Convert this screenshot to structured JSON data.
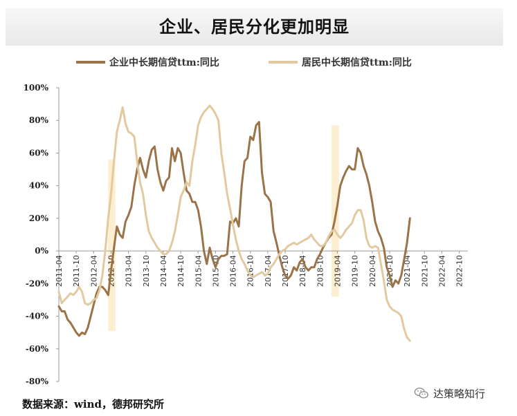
{
  "chart_data": {
    "type": "line",
    "title": "企业、居民分化更加明显",
    "source": "数据来源：wind，德邦研究所",
    "watermark": "达策略知行",
    "ylim": [
      -80,
      100
    ],
    "yticks": [
      100,
      80,
      60,
      40,
      20,
      0,
      -20,
      -40,
      -60,
      -80
    ],
    "ytick_labels": [
      "100%",
      "80%",
      "60%",
      "40%",
      "20%",
      "0%",
      "-20%",
      "-40%",
      "-60%",
      "-80%"
    ],
    "x_start": "2011-04",
    "x_end": "2022-12",
    "xtick_labels": [
      "2011-04",
      "2011-10",
      "2012-04",
      "2012-10",
      "2013-04",
      "2013-10",
      "2014-04",
      "2014-10",
      "2015-04",
      "2015-10",
      "2016-04",
      "2016-10",
      "2017-04",
      "2017-10",
      "2018-04",
      "2018-10",
      "2019-04",
      "2019-10",
      "2020-04",
      "2020-10",
      "2021-04",
      "2021-10",
      "2022-04",
      "2022-10"
    ],
    "xtick_months": [
      0,
      6,
      12,
      18,
      24,
      30,
      36,
      42,
      48,
      54,
      60,
      66,
      72,
      78,
      84,
      90,
      96,
      102,
      108,
      114,
      120,
      126,
      132,
      138
    ],
    "shaded_regions": [
      {
        "from_month": 17,
        "to_month": 19.5,
        "y_top": 56,
        "y_bottom": -49
      },
      {
        "from_month": 94,
        "to_month": 96.5,
        "y_top": 77,
        "y_bottom": -28
      }
    ],
    "series": [
      {
        "name": "企业中长期信贷ttm:同比",
        "color": "#9a7348",
        "points": [
          [
            0,
            -34
          ],
          [
            1,
            -37
          ],
          [
            2,
            -37
          ],
          [
            3,
            -42
          ],
          [
            4,
            -44
          ],
          [
            5,
            -47
          ],
          [
            6,
            -50
          ],
          [
            7,
            -52
          ],
          [
            8,
            -50
          ],
          [
            9,
            -51
          ],
          [
            10,
            -47
          ],
          [
            11,
            -40
          ],
          [
            12,
            -33
          ],
          [
            13,
            -26
          ],
          [
            14,
            -22
          ],
          [
            15,
            -22
          ],
          [
            16,
            -24
          ],
          [
            17,
            -27
          ],
          [
            18,
            -12
          ],
          [
            19,
            2
          ],
          [
            20,
            15
          ],
          [
            21,
            10
          ],
          [
            22,
            8
          ],
          [
            23,
            18
          ],
          [
            24,
            22
          ],
          [
            25,
            27
          ],
          [
            26,
            40
          ],
          [
            27,
            50
          ],
          [
            28,
            57
          ],
          [
            29,
            50
          ],
          [
            30,
            45
          ],
          [
            31,
            55
          ],
          [
            32,
            62
          ],
          [
            33,
            64
          ],
          [
            34,
            50
          ],
          [
            35,
            42
          ],
          [
            36,
            37
          ],
          [
            37,
            43
          ],
          [
            38,
            45
          ],
          [
            39,
            63
          ],
          [
            40,
            55
          ],
          [
            41,
            63
          ],
          [
            42,
            60
          ],
          [
            43,
            48
          ],
          [
            44,
            37
          ],
          [
            45,
            35
          ],
          [
            46,
            30
          ],
          [
            47,
            30
          ],
          [
            48,
            25
          ],
          [
            49,
            15
          ],
          [
            50,
            0
          ],
          [
            51,
            -8
          ],
          [
            52,
            2
          ],
          [
            53,
            -5
          ],
          [
            54,
            -10
          ],
          [
            55,
            -5
          ],
          [
            56,
            -3
          ],
          [
            57,
            -3
          ],
          [
            58,
            -2
          ],
          [
            59,
            18
          ],
          [
            60,
            17
          ],
          [
            61,
            20
          ],
          [
            62,
            15
          ],
          [
            63,
            40
          ],
          [
            64,
            55
          ],
          [
            65,
            57
          ],
          [
            66,
            70
          ],
          [
            67,
            68
          ],
          [
            68,
            77
          ],
          [
            69,
            79
          ],
          [
            70,
            48
          ],
          [
            71,
            35
          ],
          [
            72,
            33
          ],
          [
            73,
            30
          ],
          [
            74,
            12
          ],
          [
            75,
            5
          ],
          [
            76,
            -3
          ],
          [
            77,
            -10
          ],
          [
            78,
            -15
          ],
          [
            79,
            -17
          ],
          [
            80,
            -15
          ],
          [
            81,
            -10
          ],
          [
            82,
            -12
          ],
          [
            83,
            -7
          ],
          [
            84,
            -5
          ],
          [
            85,
            -10
          ],
          [
            86,
            -12
          ],
          [
            87,
            -10
          ],
          [
            88,
            -10
          ],
          [
            89,
            -5
          ],
          [
            90,
            -2
          ],
          [
            91,
            2
          ],
          [
            92,
            5
          ],
          [
            93,
            8
          ],
          [
            94,
            10
          ],
          [
            95,
            18
          ],
          [
            96,
            28
          ],
          [
            97,
            40
          ],
          [
            98,
            45
          ],
          [
            99,
            49
          ],
          [
            100,
            52
          ],
          [
            101,
            50
          ],
          [
            102,
            50
          ],
          [
            103,
            63
          ],
          [
            104,
            60
          ],
          [
            105,
            52
          ],
          [
            106,
            47
          ],
          [
            107,
            40
          ],
          [
            108,
            30
          ],
          [
            109,
            18
          ],
          [
            110,
            12
          ],
          [
            111,
            8
          ],
          [
            112,
            2
          ],
          [
            113,
            -10
          ],
          [
            114,
            -15
          ],
          [
            115,
            -22
          ],
          [
            116,
            -18
          ],
          [
            117,
            -20
          ],
          [
            118,
            -15
          ],
          [
            119,
            -5
          ],
          [
            120,
            5
          ],
          [
            121,
            20
          ]
        ]
      },
      {
        "name": "居民中长期信贷ttm:同比",
        "color": "#e2c99f",
        "points": [
          [
            0,
            -25
          ],
          [
            1,
            -32
          ],
          [
            2,
            -30
          ],
          [
            3,
            -28
          ],
          [
            4,
            -26
          ],
          [
            5,
            -27
          ],
          [
            6,
            -25
          ],
          [
            7,
            -22
          ],
          [
            8,
            -25
          ],
          [
            9,
            -32
          ],
          [
            10,
            -33
          ],
          [
            11,
            -32
          ],
          [
            12,
            -30
          ],
          [
            13,
            -29
          ],
          [
            14,
            -24
          ],
          [
            15,
            -15
          ],
          [
            16,
            0
          ],
          [
            17,
            20
          ],
          [
            18,
            35
          ],
          [
            19,
            55
          ],
          [
            20,
            73
          ],
          [
            21,
            80
          ],
          [
            22,
            88
          ],
          [
            23,
            78
          ],
          [
            24,
            73
          ],
          [
            25,
            72
          ],
          [
            26,
            70
          ],
          [
            27,
            55
          ],
          [
            28,
            42
          ],
          [
            29,
            35
          ],
          [
            30,
            22
          ],
          [
            31,
            12
          ],
          [
            32,
            8
          ],
          [
            33,
            5
          ],
          [
            34,
            2
          ],
          [
            35,
            0
          ],
          [
            36,
            -2
          ],
          [
            37,
            -2
          ],
          [
            38,
            0
          ],
          [
            39,
            5
          ],
          [
            40,
            12
          ],
          [
            41,
            22
          ],
          [
            42,
            33
          ],
          [
            43,
            37
          ],
          [
            44,
            42
          ],
          [
            45,
            40
          ],
          [
            46,
            55
          ],
          [
            47,
            65
          ],
          [
            48,
            77
          ],
          [
            49,
            82
          ],
          [
            50,
            85
          ],
          [
            51,
            87
          ],
          [
            52,
            89
          ],
          [
            53,
            87
          ],
          [
            54,
            84
          ],
          [
            55,
            80
          ],
          [
            56,
            60
          ],
          [
            57,
            48
          ],
          [
            58,
            35
          ],
          [
            59,
            26
          ],
          [
            60,
            16
          ],
          [
            61,
            7
          ],
          [
            62,
            0
          ],
          [
            63,
            -5
          ],
          [
            64,
            -8
          ],
          [
            65,
            -12
          ],
          [
            66,
            -15
          ],
          [
            67,
            -16
          ],
          [
            68,
            -15
          ],
          [
            69,
            -14
          ],
          [
            70,
            -13
          ],
          [
            71,
            -15
          ],
          [
            72,
            -14
          ],
          [
            73,
            -10
          ],
          [
            74,
            -8
          ],
          [
            75,
            -5
          ],
          [
            76,
            -2
          ],
          [
            77,
            0
          ],
          [
            78,
            1
          ],
          [
            79,
            3
          ],
          [
            80,
            4
          ],
          [
            81,
            5
          ],
          [
            82,
            4
          ],
          [
            83,
            5
          ],
          [
            84,
            6
          ],
          [
            85,
            7
          ],
          [
            86,
            8
          ],
          [
            87,
            10
          ],
          [
            88,
            7
          ],
          [
            89,
            5
          ],
          [
            90,
            3
          ],
          [
            91,
            3
          ],
          [
            92,
            5
          ],
          [
            93,
            9
          ],
          [
            94,
            12
          ],
          [
            95,
            13
          ],
          [
            96,
            10
          ],
          [
            97,
            8
          ],
          [
            98,
            10
          ],
          [
            99,
            13
          ],
          [
            100,
            15
          ],
          [
            101,
            17
          ],
          [
            102,
            22
          ],
          [
            103,
            25
          ],
          [
            104,
            25
          ],
          [
            105,
            19
          ],
          [
            106,
            8
          ],
          [
            107,
            3
          ],
          [
            108,
            2
          ],
          [
            109,
            3
          ],
          [
            110,
            2
          ],
          [
            111,
            -8
          ],
          [
            112,
            -18
          ],
          [
            113,
            -30
          ],
          [
            114,
            -34
          ],
          [
            115,
            -36
          ],
          [
            116,
            -37
          ],
          [
            117,
            -38
          ],
          [
            118,
            -40
          ],
          [
            119,
            -48
          ],
          [
            120,
            -53
          ],
          [
            121,
            -55
          ]
        ]
      }
    ]
  }
}
